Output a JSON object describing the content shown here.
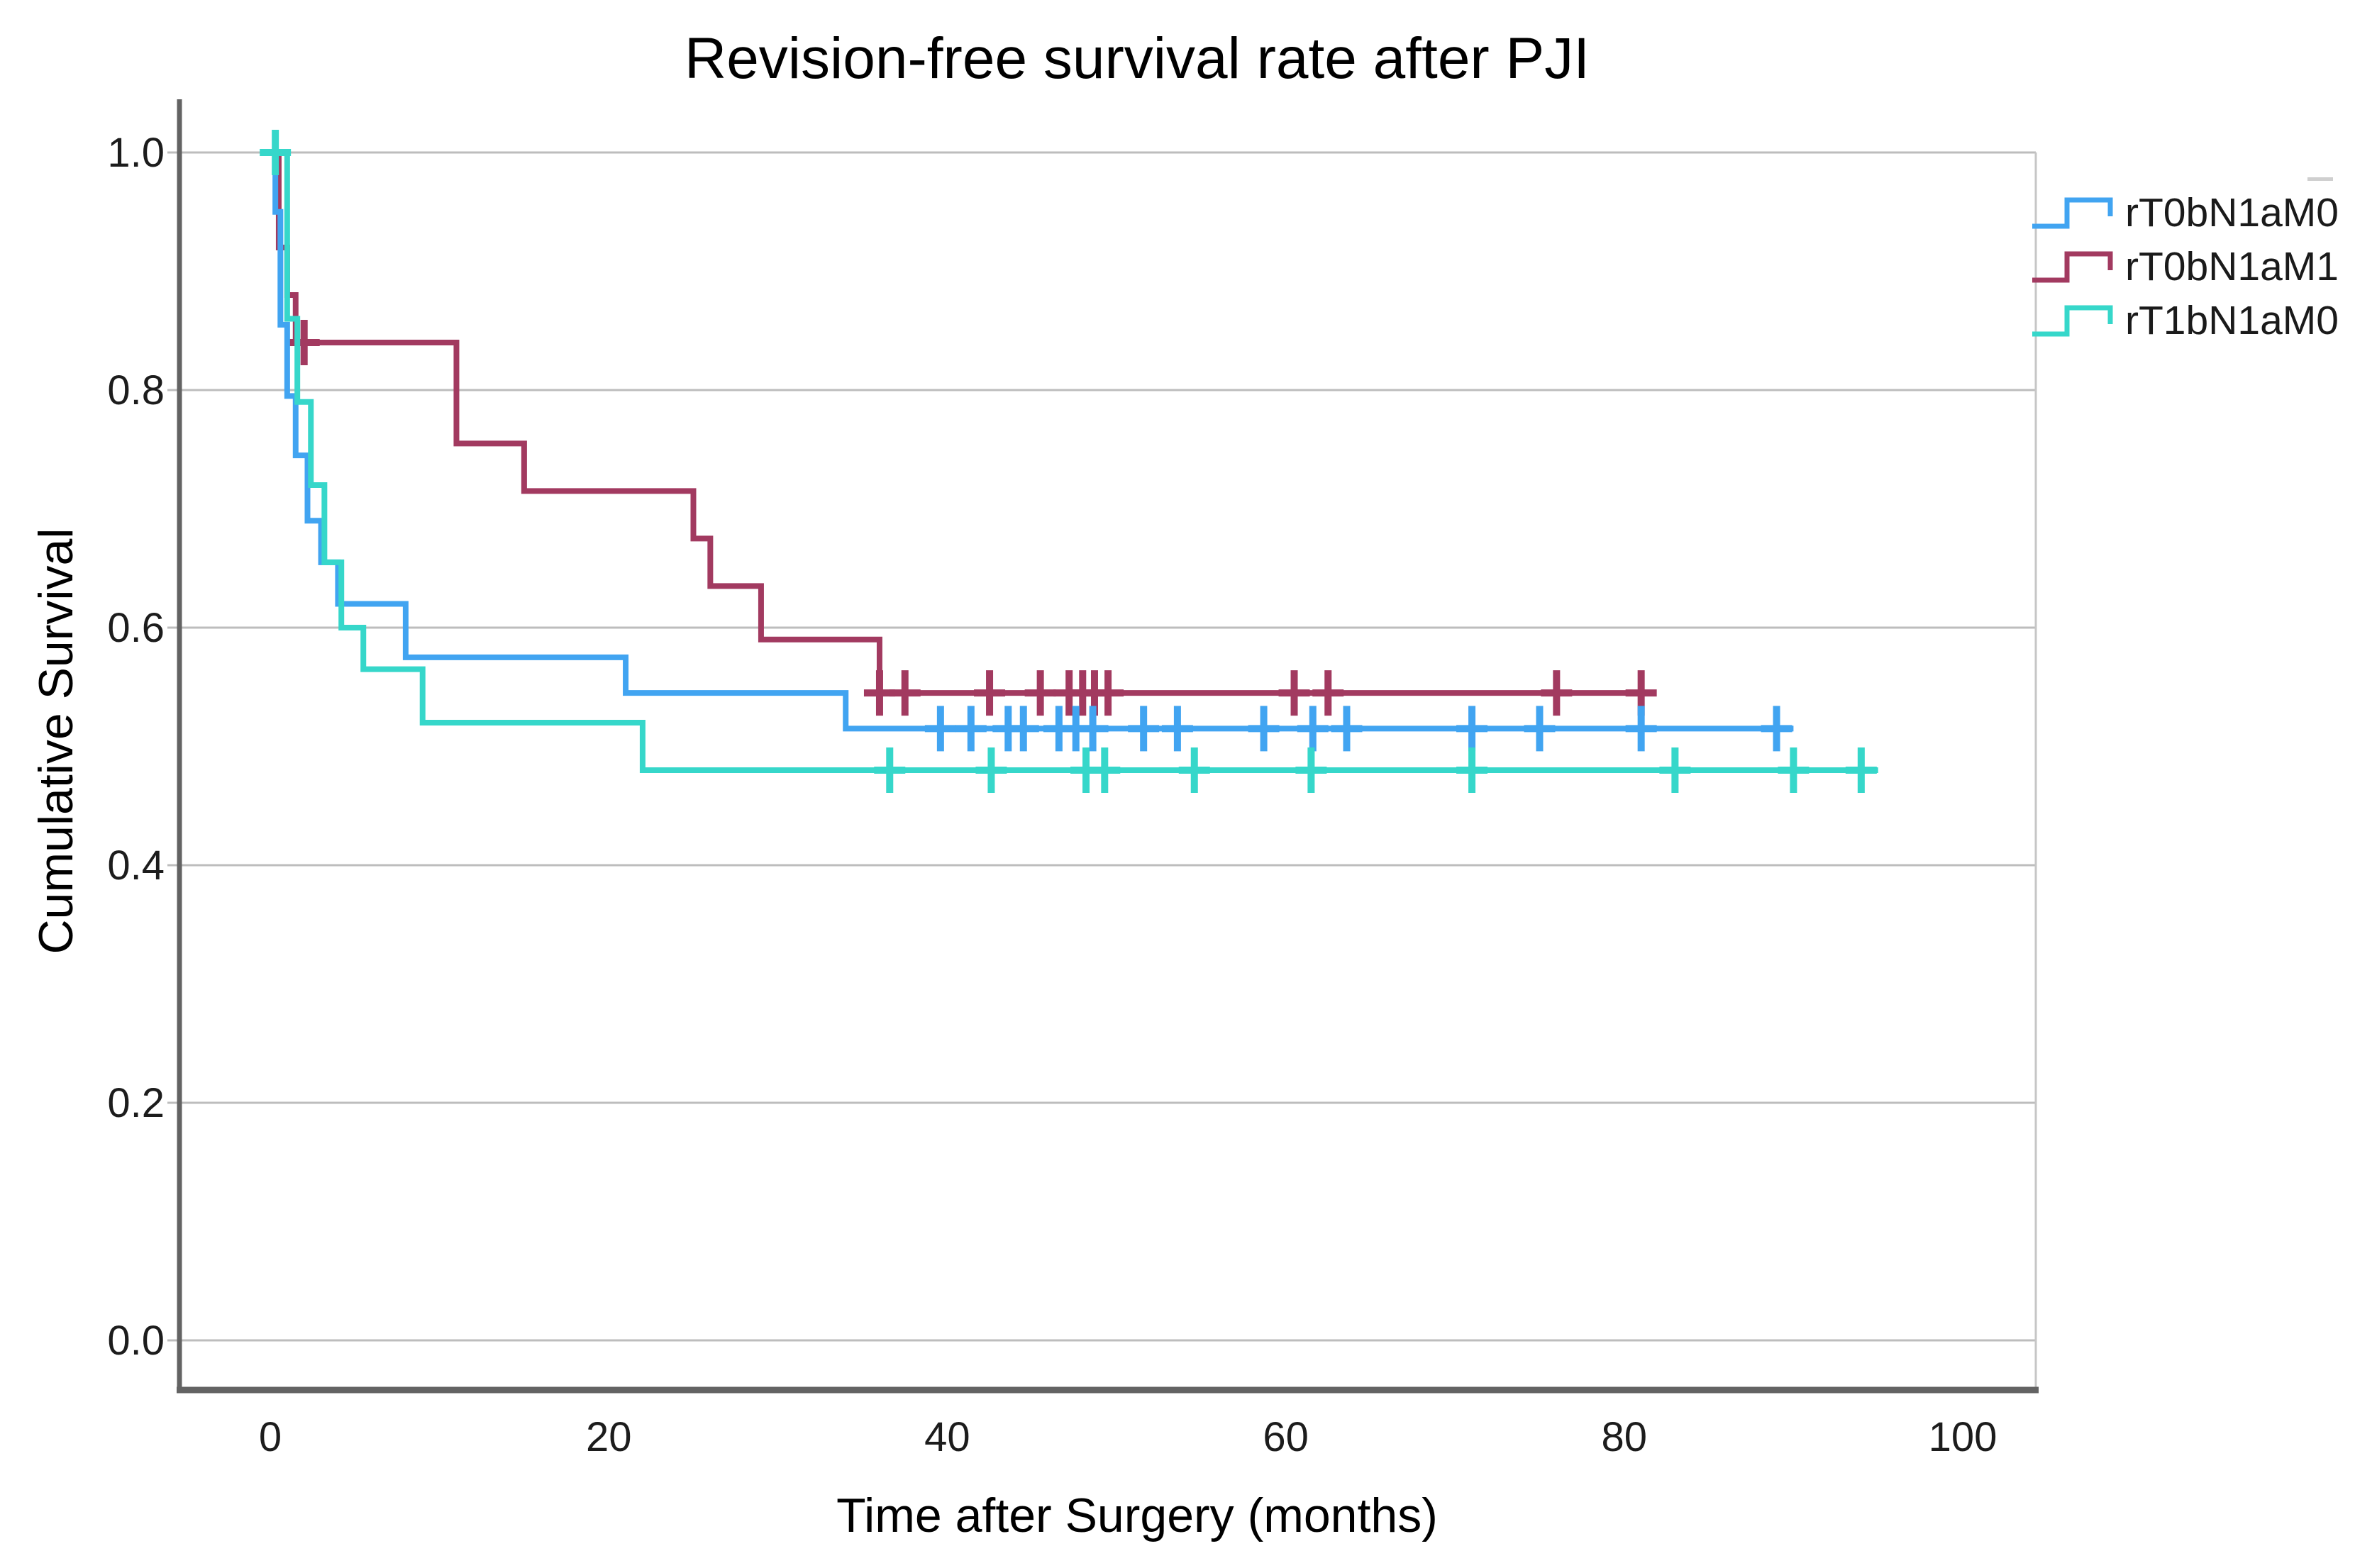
{
  "chart_data": {
    "type": "line",
    "subtype": "kaplan-meier-step",
    "title": "Revision-free survival rate after PJI",
    "xlabel": "Time after Surgery (months)",
    "ylabel": "Cumulative Survival",
    "xlim": [
      -5,
      104
    ],
    "ylim": [
      -0.04,
      1.04
    ],
    "grid": "horizontal",
    "gridline_color": "#bdbdbd",
    "axis_color": "#636363",
    "legend_position": "right",
    "xticks": {
      "values": [
        0,
        20,
        40,
        60,
        80,
        100
      ],
      "labels": [
        "0",
        "20",
        "40",
        "60",
        "80",
        "100"
      ]
    },
    "yticks": {
      "values": [
        0.0,
        0.2,
        0.4,
        0.6,
        0.8,
        1.0
      ],
      "labels": [
        "0.0",
        "0.2",
        "0.4",
        "0.6",
        "0.8",
        "1.0"
      ]
    },
    "series": [
      {
        "name": "rT0bN1aM0",
        "color": "#41A4F1",
        "end_time": 90,
        "steps": [
          [
            0,
            1.0
          ],
          [
            0.3,
            0.95
          ],
          [
            0.6,
            0.855
          ],
          [
            1,
            0.795
          ],
          [
            1.5,
            0.745
          ],
          [
            2.2,
            0.69
          ],
          [
            3,
            0.655
          ],
          [
            4,
            0.62
          ],
          [
            8,
            0.575
          ],
          [
            21,
            0.545
          ],
          [
            34,
            0.515
          ]
        ],
        "censored": [
          [
            39.6,
            0.515
          ],
          [
            41.4,
            0.515
          ],
          [
            43.6,
            0.515
          ],
          [
            44.5,
            0.515
          ],
          [
            46.6,
            0.515
          ],
          [
            47.6,
            0.515
          ],
          [
            48.6,
            0.515
          ],
          [
            51.6,
            0.515
          ],
          [
            53.6,
            0.515
          ],
          [
            58.7,
            0.515
          ],
          [
            61.6,
            0.515
          ],
          [
            63.6,
            0.515
          ],
          [
            71,
            0.515
          ],
          [
            75,
            0.515
          ],
          [
            81,
            0.515
          ],
          [
            89,
            0.515
          ]
        ]
      },
      {
        "name": "rT0bN1aM1",
        "color": "#A23A60",
        "end_time": 81,
        "steps": [
          [
            0,
            1.0
          ],
          [
            0.5,
            0.92
          ],
          [
            1,
            0.88
          ],
          [
            1.5,
            0.84
          ],
          [
            11,
            0.755
          ],
          [
            15,
            0.715
          ],
          [
            25,
            0.675
          ],
          [
            26,
            0.635
          ],
          [
            29,
            0.59
          ],
          [
            36,
            0.545
          ]
        ],
        "censored": [
          [
            2,
            0.84
          ],
          [
            36,
            0.545
          ],
          [
            37.5,
            0.545
          ],
          [
            42.5,
            0.545
          ],
          [
            45.5,
            0.545
          ],
          [
            47.2,
            0.545
          ],
          [
            48,
            0.545
          ],
          [
            48.7,
            0.545
          ],
          [
            49.5,
            0.545
          ],
          [
            60.5,
            0.545
          ],
          [
            62.5,
            0.545
          ],
          [
            76,
            0.545
          ],
          [
            81,
            0.545
          ]
        ]
      },
      {
        "name": "rT1bN1aM0",
        "color": "#36D7CA",
        "end_time": 95,
        "steps": [
          [
            0,
            1.0
          ],
          [
            1,
            0.86
          ],
          [
            1.6,
            0.79
          ],
          [
            2.4,
            0.72
          ],
          [
            3.2,
            0.655
          ],
          [
            4.2,
            0.6
          ],
          [
            5.5,
            0.565
          ],
          [
            9,
            0.52
          ],
          [
            22,
            0.48
          ]
        ],
        "censored": [
          [
            0.3,
            1.0
          ],
          [
            36.6,
            0.48
          ],
          [
            42.6,
            0.48
          ],
          [
            48.2,
            0.48
          ],
          [
            49.3,
            0.48
          ],
          [
            54.6,
            0.48
          ],
          [
            61.5,
            0.48
          ],
          [
            71,
            0.48
          ],
          [
            83,
            0.48
          ],
          [
            90,
            0.48
          ],
          [
            94,
            0.48
          ]
        ]
      }
    ]
  },
  "legend": {
    "items": [
      {
        "label": "rT0bN1aM0"
      },
      {
        "label": "rT0bN1aM1"
      },
      {
        "label": "rT1bN1aM0"
      }
    ]
  }
}
